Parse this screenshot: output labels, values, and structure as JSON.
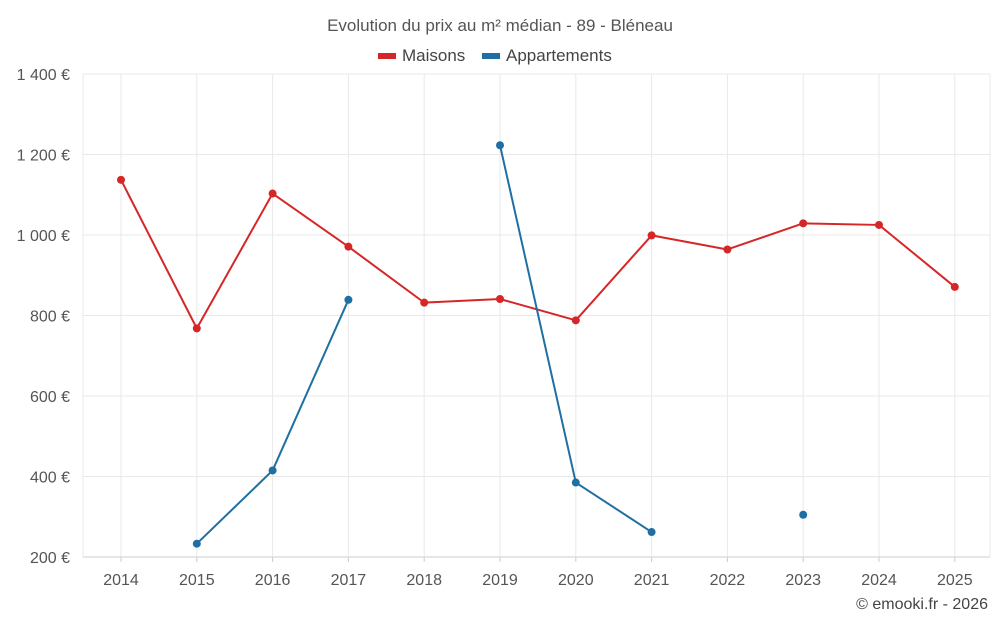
{
  "chart_data": {
    "type": "line",
    "title": "Evolution du prix au m² médian - 89 - Bléneau",
    "xlabel": "",
    "ylabel": "",
    "legend_position": "top-center",
    "grid": true,
    "ylim": [
      200,
      1400
    ],
    "y_ticks": [
      200,
      400,
      600,
      800,
      1000,
      1200,
      1400
    ],
    "y_tick_labels": [
      "200 €",
      "400 €",
      "600 €",
      "800 €",
      "1 000 €",
      "1 200 €",
      "1 400 €"
    ],
    "categories": [
      "2014",
      "2015",
      "2016",
      "2017",
      "2018",
      "2019",
      "2020",
      "2021",
      "2022",
      "2023",
      "2024",
      "2025"
    ],
    "series": [
      {
        "name": "Maisons",
        "color": "#d62728",
        "values": [
          1137,
          768,
          1103,
          971,
          832,
          841,
          788,
          999,
          964,
          1029,
          1025,
          871
        ]
      },
      {
        "name": "Appartements",
        "color": "#1f6fa3",
        "values": [
          null,
          233,
          415,
          839,
          null,
          1223,
          385,
          262,
          null,
          305,
          null,
          null
        ]
      }
    ]
  },
  "credit": "© emooki.fr - 2026"
}
